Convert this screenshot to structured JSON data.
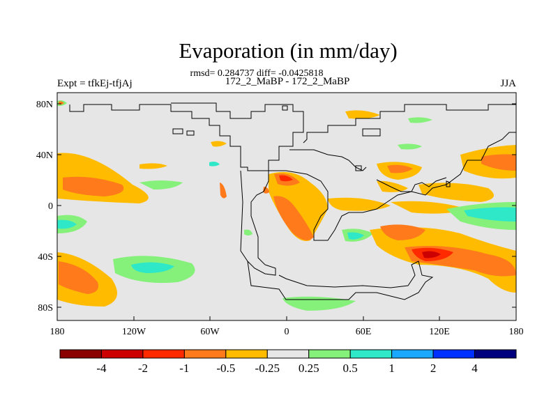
{
  "title": "Evaporation (in mm/day)",
  "stats": "rmsd= 0.284737 diff= -0.0425818",
  "left_label": "Expt = tfkEj-tfjAj",
  "center_label": "172_2_MaBP - 172_2_MaBP",
  "right_label": "JJA",
  "chart_data": {
    "type": "heatmap",
    "variable": "Evaporation anomaly",
    "units": "mm/day",
    "season": "JJA",
    "x_ticks": [
      "180",
      "120W",
      "60W",
      "0",
      "60E",
      "120E",
      "180"
    ],
    "y_ticks": [
      "80N",
      "40N",
      "0",
      "40S",
      "80S"
    ],
    "xlim": [
      -180,
      180
    ],
    "ylim": [
      -90,
      90
    ],
    "colorbar": {
      "labels": [
        "-4",
        "-2",
        "-1",
        "-0.5",
        "-0.25",
        "0.25",
        "0.5",
        "1",
        "2",
        "4"
      ],
      "colors": [
        "#8b0000",
        "#cc0000",
        "#ff2a00",
        "#ff7a1a",
        "#ffbb00",
        "#e6e6e6",
        "#85f07a",
        "#2ee8c8",
        "#1aa8ff",
        "#0030ff",
        "#00007f"
      ]
    }
  }
}
